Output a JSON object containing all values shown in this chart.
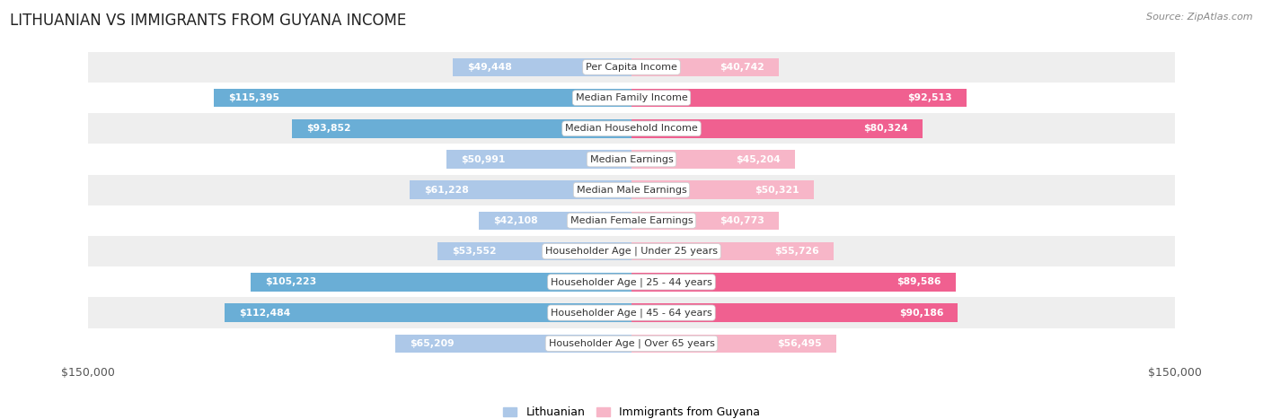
{
  "title": "LITHUANIAN VS IMMIGRANTS FROM GUYANA INCOME",
  "source": "Source: ZipAtlas.com",
  "categories": [
    "Per Capita Income",
    "Median Family Income",
    "Median Household Income",
    "Median Earnings",
    "Median Male Earnings",
    "Median Female Earnings",
    "Householder Age | Under 25 years",
    "Householder Age | 25 - 44 years",
    "Householder Age | 45 - 64 years",
    "Householder Age | Over 65 years"
  ],
  "lithuanian_values": [
    49448,
    115395,
    93852,
    50991,
    61228,
    42108,
    53552,
    105223,
    112484,
    65209
  ],
  "guyana_values": [
    40742,
    92513,
    80324,
    45204,
    50321,
    40773,
    55726,
    89586,
    90186,
    56495
  ],
  "lithuanian_color_light": "#adc8e8",
  "lithuanian_color_dark": "#6aaed6",
  "guyana_color_light": "#f7b6c8",
  "guyana_color_dark": "#f06090",
  "dark_threshold": 80000,
  "label_color_outside": "#555555",
  "bar_height": 0.6,
  "max_value": 150000,
  "background_color": "#ffffff",
  "row_colors": [
    "#eeeeee",
    "#ffffff"
  ],
  "legend_labels": [
    "Lithuanian",
    "Immigrants from Guyana"
  ],
  "legend_colors_light": [
    "#adc8e8",
    "#f7b6c8"
  ],
  "axis_label_left": "$150,000",
  "axis_label_right": "$150,000"
}
